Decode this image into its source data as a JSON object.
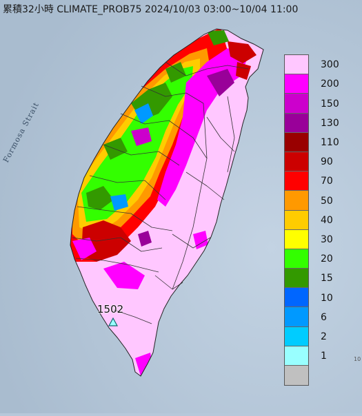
{
  "title": "累積32小時 CLIMATE_PROB75 2024/10/03 03:00~10/04 11:00",
  "strait_label": "Formosa Strait",
  "station_label": "1502",
  "edge_mark": "10",
  "legend": {
    "items": [
      {
        "label": "300",
        "color": "#ffc7ff"
      },
      {
        "label": "200",
        "color": "#ff00ff"
      },
      {
        "label": "150",
        "color": "#cc00cc"
      },
      {
        "label": "130",
        "color": "#990099"
      },
      {
        "label": "110",
        "color": "#990000"
      },
      {
        "label": "90",
        "color": "#cc0000"
      },
      {
        "label": "70",
        "color": "#ff0000"
      },
      {
        "label": "50",
        "color": "#ff9900"
      },
      {
        "label": "40",
        "color": "#ffcc00"
      },
      {
        "label": "30",
        "color": "#ffff00"
      },
      {
        "label": "20",
        "color": "#33ff00"
      },
      {
        "label": "15",
        "color": "#339900"
      },
      {
        "label": "10",
        "color": "#0066ff"
      },
      {
        "label": "6",
        "color": "#0099ff"
      },
      {
        "label": "2",
        "color": "#00ccff"
      },
      {
        "label": "1",
        "color": "#99ffff"
      },
      {
        "label": "",
        "color": "#c0c0c0"
      }
    ]
  },
  "colors": {
    "sea": "#b7c8da",
    "land_high": "#ffc7ff",
    "district_lines": "#333333"
  }
}
